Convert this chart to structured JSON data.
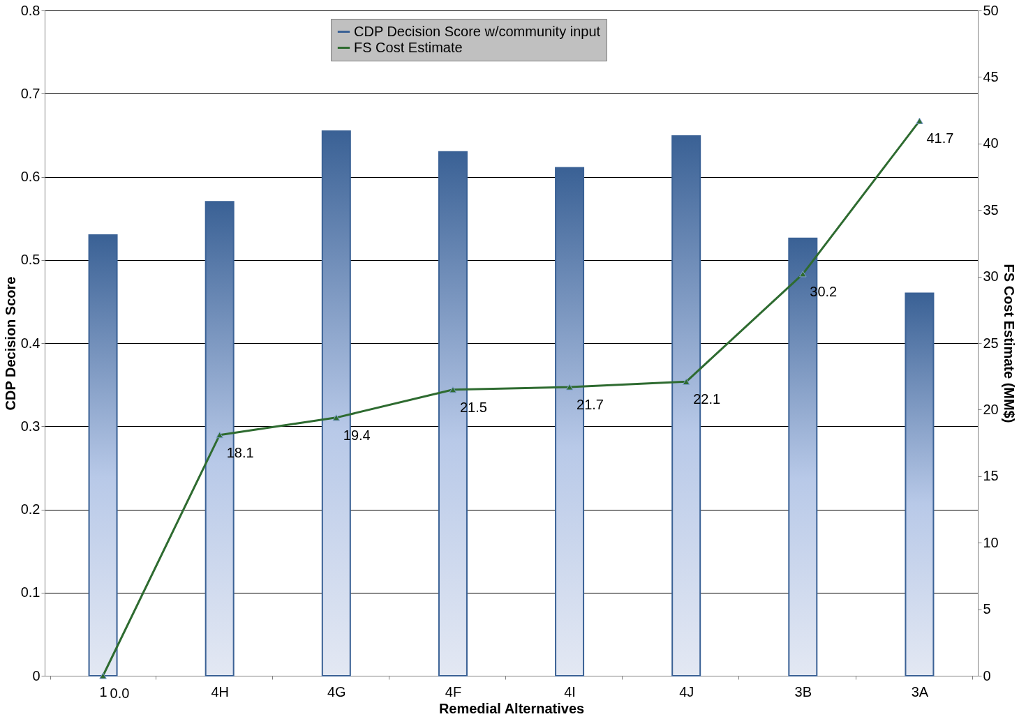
{
  "chart_data": {
    "type": "bar",
    "xlabel": "Remedial Alternatives",
    "ylabel": "CDP Decision Score",
    "y2label": "FS Cost Estimate (MM$)",
    "categories": [
      "1",
      "4H",
      "4G",
      "4F",
      "4I",
      "4J",
      "3B",
      "3A"
    ],
    "series": [
      {
        "name": "CDP Decision Score w/community input",
        "color": "#3a6195",
        "values": [
          0.53,
          0.57,
          0.655,
          0.63,
          0.611,
          0.649,
          0.526,
          0.46
        ]
      },
      {
        "name": "FS Cost Estimate",
        "type": "line",
        "axis": "y2",
        "color": "#2e6b30",
        "marker": "triangle",
        "values": [
          0.0,
          18.1,
          19.4,
          21.5,
          21.7,
          22.1,
          30.2,
          41.7
        ],
        "value_labels": [
          "0.0",
          "18.1",
          "19.4",
          "21.5",
          "21.7",
          "22.1",
          "30.2",
          "41.7"
        ]
      }
    ],
    "ylim": [
      0,
      0.8
    ],
    "yticks": [
      0,
      0.1,
      0.2,
      0.3,
      0.4,
      0.5,
      0.6,
      0.7,
      0.8
    ],
    "y2lim": [
      0,
      50
    ],
    "y2ticks": [
      0,
      5,
      10,
      15,
      20,
      25,
      30,
      35,
      40,
      45,
      50
    ],
    "grid": "y",
    "legend": "top"
  }
}
